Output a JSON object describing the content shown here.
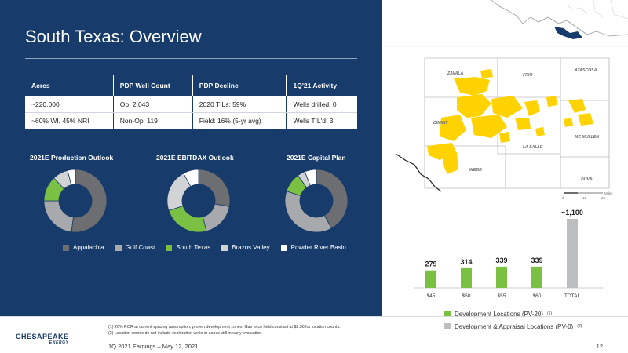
{
  "slide": {
    "title": "South Texas: Overview",
    "page_number": "12",
    "footer": "1Q 2021 Earnings – May 12, 2021"
  },
  "table": {
    "headers": [
      "Acres",
      "PDP Well Count",
      "PDP Decline",
      "1Q'21 Activity"
    ],
    "rows": [
      [
        "~220,000",
        "Op: 2,043",
        "2020 TILs: 59%",
        "Wells drilled: 0"
      ],
      [
        "~60% WI, 45% NRI",
        "Non-Op: 119",
        "Field: 16% (5-yr avg)",
        "Wells TIL'd: 3"
      ]
    ]
  },
  "donuts": [
    {
      "title": "2021E Production Outlook",
      "segments": [
        [
          "Appalachia",
          0.52
        ],
        [
          "Gulf Coast",
          0.23
        ],
        [
          "South Texas",
          0.13
        ],
        [
          "Brazos Valley",
          0.08
        ],
        [
          "Powder River Basin",
          0.04
        ]
      ]
    },
    {
      "title": "2021E EBITDAX Outlook",
      "segments": [
        [
          "Appalachia",
          0.28
        ],
        [
          "Gulf Coast",
          0.18
        ],
        [
          "South Texas",
          0.24
        ],
        [
          "Brazos Valley",
          0.22
        ],
        [
          "Powder River Basin",
          0.08
        ]
      ]
    },
    {
      "title": "2021E Capital Plan",
      "segments": [
        [
          "Appalachia",
          0.42
        ],
        [
          "Gulf Coast",
          0.38
        ],
        [
          "South Texas",
          0.1
        ],
        [
          "Brazos Valley",
          0.04
        ],
        [
          "Powder River Basin",
          0.06
        ]
      ]
    }
  ],
  "legend": [
    {
      "label": "Appalachia",
      "color": "#6d6e71"
    },
    {
      "label": "Gulf Coast",
      "color": "#a7a9ac"
    },
    {
      "label": "South Texas",
      "color": "#7ac143"
    },
    {
      "label": "Brazos Valley",
      "color": "#d1d3d4"
    },
    {
      "label": "Powder River Basin",
      "color": "#ffffff"
    }
  ],
  "map": {
    "counties": [
      "ZAVALA",
      "FRIO",
      "ATASCOSA",
      "DIMMIT",
      "LA SALLE",
      "MC MULLEN",
      "WEBB",
      "DUVAL"
    ],
    "scale_label": "Miles",
    "scale_ticks": [
      "0",
      "10",
      "20"
    ]
  },
  "chart_data": {
    "type": "bar",
    "categories": [
      "$45",
      "$50",
      "$55",
      "$60",
      "TOTAL"
    ],
    "values": [
      279,
      314,
      339,
      339,
      1100
    ],
    "data_labels": [
      "279",
      "314",
      "339",
      "339",
      "~1,100"
    ],
    "colors": [
      "#7ac143",
      "#7ac143",
      "#7ac143",
      "#7ac143",
      "#bcbec0"
    ],
    "series_legend": [
      {
        "label": "Development Locations (PV-20)",
        "sup": "(1)",
        "color": "#7ac143"
      },
      {
        "label": "Development & Appraisal Locations (PV-0)",
        "sup": "(2)",
        "color": "#bcbec0"
      }
    ],
    "ylim": [
      0,
      1100
    ]
  },
  "footnotes": [
    "(1)  20% ROR at current spacing assumption, proven development zones; Gas price held constant at $2.50 for location counts.",
    "(2)  Location counts do not include exploration wells or zones still in early evaluation."
  ],
  "logo": {
    "main": "CHESAPEAKE",
    "sub": "ENERGY"
  }
}
